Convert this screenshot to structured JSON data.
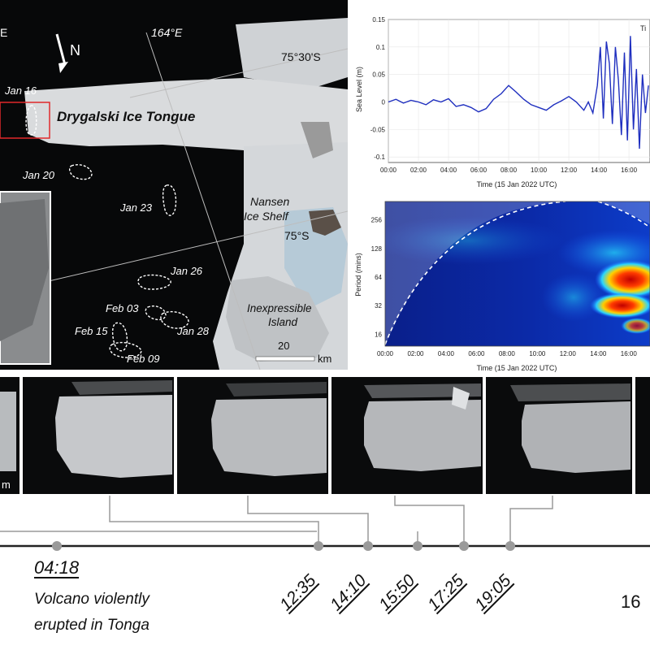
{
  "map": {
    "labels": {
      "longitude": "164°E",
      "north": "N",
      "lat_75_30": "75°30'S",
      "lat_75": "75°S",
      "edge_e": "E",
      "ice_tongue": "Drygalski Ice Tongue",
      "ice_shelf_line1": "Nansen",
      "ice_shelf_line2": "Ice Shelf",
      "island_line1": "Inexpressible",
      "island_line2": "Island",
      "scale_value": "20",
      "scale_unit": "km"
    },
    "dates": [
      "Jan 16",
      "Jan 20",
      "Jan 23",
      "Jan 26",
      "Feb 03",
      "Jan 28",
      "Feb 15",
      "Feb 09"
    ],
    "colors": {
      "highlight_box": "#e0292b",
      "ocean": "#070809",
      "ice": "#d6d8da"
    }
  },
  "sea_level_chart": {
    "type": "line",
    "title_partial": "Ti",
    "xlabel": "Time (15 Jan 2022 UTC)",
    "ylabel": "Sea Level (m)",
    "yticks": [
      "0.15",
      "0.1",
      "0.05",
      "0",
      "-0.05",
      "-0.1"
    ],
    "xticks": [
      "00:00",
      "02:00",
      "04:00",
      "06:00",
      "08:00",
      "10:00",
      "12:00",
      "14:00",
      "16:00"
    ],
    "color": "#1f2fbf"
  },
  "wavelet_chart": {
    "type": "heatmap",
    "xlabel": "Time (15 Jan 2022 UTC)",
    "ylabel": "Period (mins)",
    "yticks": [
      "256",
      "128",
      "64",
      "32",
      "16"
    ],
    "xticks": [
      "00:00",
      "02:00",
      "04:00",
      "06:00",
      "08:00",
      "10:00",
      "12:00",
      "14:00",
      "16:00"
    ]
  },
  "chart_data": [
    {
      "type": "line",
      "xlabel": "Time (15 Jan 2022 UTC)",
      "ylabel": "Sea Level (m)",
      "ylim": [
        -0.1,
        0.15
      ],
      "xlim_hours": [
        0,
        17.4
      ],
      "series": [
        {
          "x": [
            0,
            0.5,
            1.0,
            1.5,
            2.0,
            2.5,
            3.0,
            3.5,
            4.0,
            4.5,
            5.0,
            5.5,
            6.0,
            6.5,
            7.0,
            7.5,
            8.0,
            8.5,
            9.0,
            9.5,
            10.0,
            10.5,
            11.0,
            11.5,
            12.0,
            12.5,
            13.0,
            13.3,
            13.6,
            13.9,
            14.1,
            14.3,
            14.5,
            14.7,
            14.9,
            15.1,
            15.3,
            15.5,
            15.7,
            15.9,
            16.1,
            16.3,
            16.5,
            16.7,
            16.9,
            17.1,
            17.3
          ],
          "y": [
            0.0,
            0.005,
            -0.002,
            0.003,
            0.0,
            -0.005,
            0.004,
            0.0,
            0.006,
            -0.008,
            -0.005,
            -0.01,
            -0.018,
            -0.012,
            0.005,
            0.015,
            0.03,
            0.018,
            0.005,
            -0.005,
            -0.01,
            -0.015,
            -0.005,
            0.002,
            0.01,
            0.0,
            -0.015,
            0.0,
            -0.02,
            0.03,
            0.1,
            -0.03,
            0.11,
            0.07,
            -0.04,
            0.1,
            0.04,
            -0.06,
            0.09,
            -0.07,
            0.12,
            -0.05,
            0.06,
            -0.085,
            0.05,
            -0.02,
            0.03
          ]
        }
      ]
    },
    {
      "type": "heatmap",
      "xlabel": "Time (15 Jan 2022 UTC)",
      "ylabel": "Period (mins)",
      "yticks": [
        256,
        128,
        64,
        32,
        16
      ],
      "xlim_hours": [
        0,
        17.4
      ]
    }
  ],
  "photo_strip": {
    "scale_tail": "m"
  },
  "timeline": {
    "eruption_time": "04:18",
    "eruption_desc_line1": "Volcano violently",
    "eruption_desc_line2": "erupted in Tonga",
    "times": [
      "12:35",
      "14:10",
      "15:50",
      "17:25",
      "19:05"
    ],
    "next_date": "16"
  }
}
